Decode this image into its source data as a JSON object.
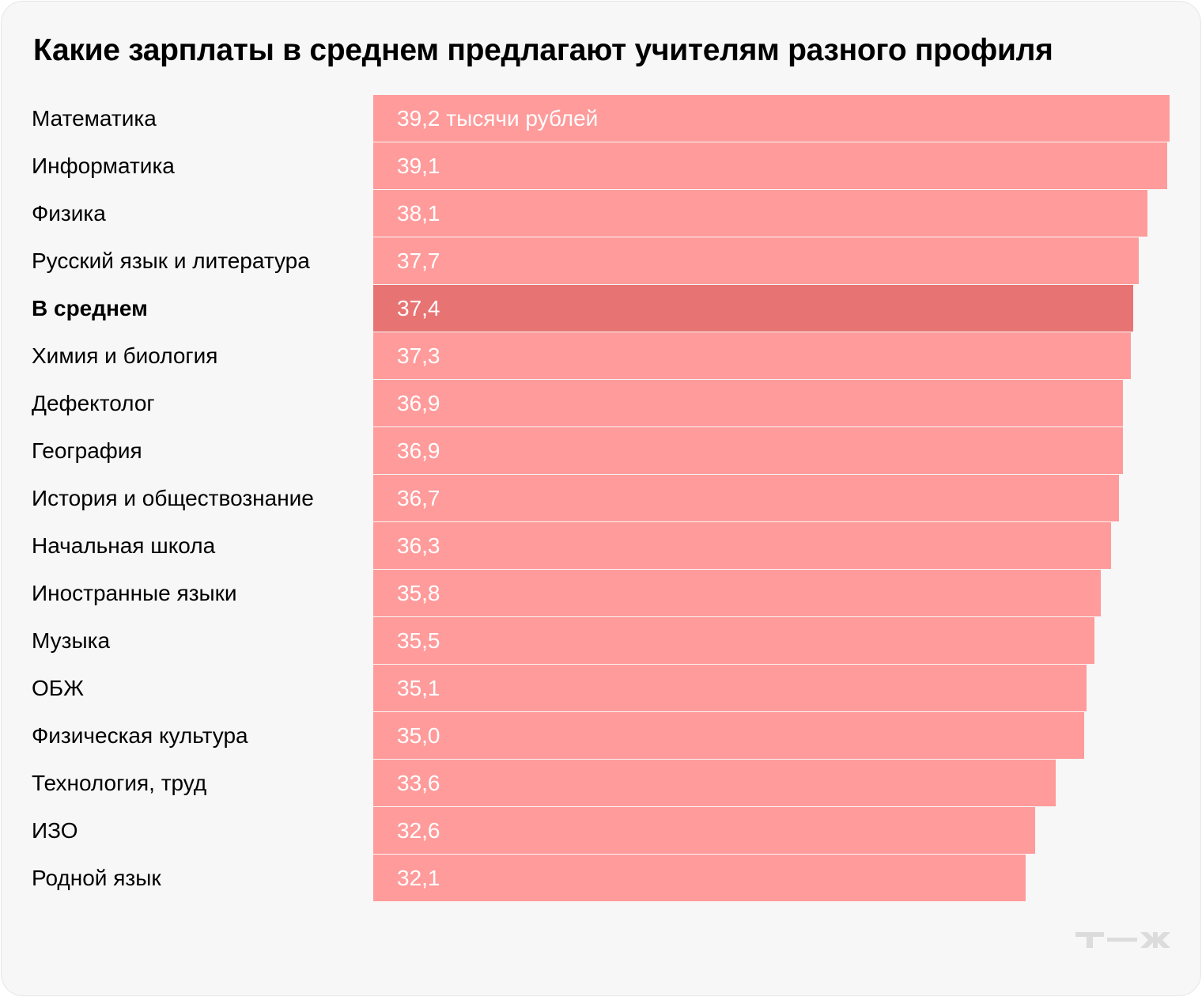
{
  "chart_data": {
    "type": "bar",
    "orientation": "horizontal",
    "title": "Какие зарплаты в среднем предлагают учителям разного профиля",
    "unit_label": "тысячи рублей",
    "categories": [
      "Математика",
      "Информатика",
      "Физика",
      "Русский язык и литература",
      "В среднем",
      "Химия и биология",
      "Дефектолог",
      "География",
      "История и обществознание",
      "Начальная школа",
      "Иностранные языки",
      "Музыка",
      "ОБЖ",
      "Физическая культура",
      "Технология, труд",
      "ИЗО",
      "Родной язык"
    ],
    "values": [
      39.2,
      39.1,
      38.1,
      37.7,
      37.4,
      37.3,
      36.9,
      36.9,
      36.7,
      36.3,
      35.8,
      35.5,
      35.1,
      35.0,
      33.6,
      32.6,
      32.1
    ],
    "value_labels": [
      "39,2 тысячи рублей",
      "39,1",
      "38,1",
      "37,7",
      "37,4",
      "37,3",
      "36,9",
      "36,9",
      "36,7",
      "36,3",
      "35,8",
      "35,5",
      "35,1",
      "35,0",
      "33,6",
      "32,6",
      "32,1"
    ],
    "highlight_category": "В среднем",
    "xlim": [
      0,
      39.2
    ],
    "grid": false,
    "colors": {
      "bar": "#ff9b9b",
      "highlight": "#e87373",
      "background": "#f7f7f7"
    }
  },
  "logo": {
    "text": "Т—Ж",
    "color": "#dcdcdc"
  }
}
